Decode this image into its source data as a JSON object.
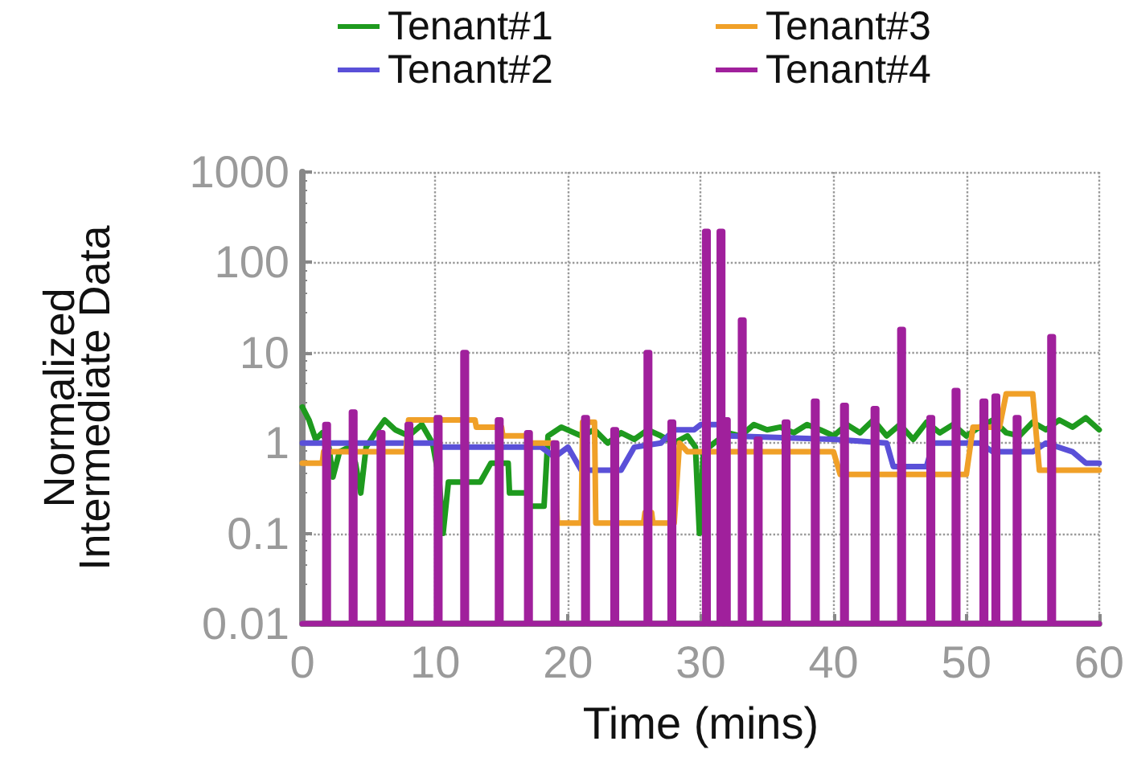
{
  "chart_data": {
    "type": "line",
    "xlabel": "Time (mins)",
    "ylabel": "Normalized\nIntermediate Data",
    "xlim": [
      0,
      60
    ],
    "xticks": [
      0,
      10,
      20,
      30,
      40,
      50,
      60
    ],
    "ylim": [
      0.01,
      1000
    ],
    "yticks": [
      0.01,
      0.1,
      1,
      10,
      100,
      1000
    ],
    "log": "y",
    "grid": true,
    "legend": "top",
    "marker": "none",
    "line_style": "solid",
    "series": [
      {
        "name": "Tenant#1",
        "color": "#1e9a1e",
        "x": [
          0,
          0.5,
          1,
          1.5,
          2,
          2.3,
          2.8,
          3.5,
          4,
          4.4,
          4.8,
          5.5,
          6.2,
          7,
          8,
          9,
          9.8,
          10.3,
          10.6,
          11,
          13.4,
          14.2,
          15.5,
          15.6,
          17,
          17.1,
          18.2,
          18.5,
          19.5,
          21,
          22,
          23,
          24,
          25,
          26,
          27,
          28,
          29,
          29.6,
          29.9,
          30.2,
          31,
          32,
          33,
          34,
          35,
          36,
          37,
          38,
          39,
          40,
          41,
          42,
          43,
          44,
          45,
          46,
          47,
          48,
          49,
          50,
          51,
          52,
          53,
          54,
          55,
          56,
          57,
          58,
          59,
          60
        ],
        "values": [
          2.5,
          1.8,
          1.1,
          1.3,
          0.9,
          0.42,
          0.8,
          0.9,
          0.6,
          0.28,
          0.9,
          1.3,
          1.8,
          1.4,
          1.2,
          1.6,
          1.0,
          0.4,
          0.1,
          0.37,
          0.37,
          0.6,
          0.6,
          0.28,
          0.28,
          0.2,
          0.2,
          1.2,
          1.5,
          1.2,
          1.4,
          1.0,
          1.3,
          1.1,
          1.4,
          1.2,
          1.0,
          1.2,
          0.9,
          0.1,
          0.8,
          1.0,
          1.3,
          1.2,
          1.6,
          1.4,
          1.5,
          1.3,
          1.6,
          1.4,
          1.2,
          1.6,
          1.3,
          1.8,
          1.2,
          1.6,
          1.1,
          1.7,
          1.3,
          1.6,
          1.2,
          1.5,
          1.8,
          1.3,
          1.2,
          1.7,
          1.4,
          1.8,
          1.5,
          1.9,
          1.4
        ]
      },
      {
        "name": "Tenant#2",
        "color": "#5a50d8",
        "x": [
          0,
          10,
          10.5,
          18,
          19,
          20,
          21,
          24,
          25,
          27,
          28,
          29.5,
          30,
          31.5,
          32,
          40,
          44,
          44.5,
          47,
          47.5,
          51,
          52,
          55,
          56,
          58,
          59,
          60
        ],
        "values": [
          1.0,
          1.0,
          0.9,
          0.9,
          0.7,
          0.9,
          0.5,
          0.5,
          0.9,
          1.0,
          1.4,
          1.4,
          1.6,
          1.6,
          1.2,
          1.1,
          1.0,
          0.55,
          0.55,
          1.0,
          1.0,
          0.8,
          0.8,
          1.0,
          0.8,
          0.6,
          0.6
        ]
      },
      {
        "name": "Tenant#3",
        "color": "#f0a028",
        "x": [
          0,
          1.5,
          1.6,
          7.8,
          8,
          13,
          13.1,
          15,
          15.1,
          17,
          17.1,
          19,
          19.2,
          21,
          21.1,
          22,
          22.1,
          25.7,
          25.8,
          26.3,
          26.4,
          28,
          28.4,
          29,
          38,
          40,
          40.5,
          50,
          50.5,
          52.5,
          53,
          55,
          55.5,
          60
        ],
        "values": [
          0.6,
          0.6,
          0.8,
          0.8,
          1.8,
          1.8,
          1.5,
          1.5,
          1.2,
          1.2,
          1.0,
          1.0,
          0.13,
          0.13,
          1.7,
          1.7,
          0.13,
          0.13,
          0.17,
          0.17,
          0.13,
          0.13,
          1.0,
          0.8,
          0.8,
          0.8,
          0.45,
          0.45,
          1.5,
          1.5,
          3.5,
          3.5,
          0.5,
          0.5
        ]
      },
      {
        "name": "Tenant#4",
        "color": "#a0209c",
        "x": [
          0,
          1.7,
          1.7,
          1.95,
          1.95,
          3.7,
          3.7,
          3.95,
          3.95,
          5.8,
          5.8,
          6.05,
          6.05,
          7.9,
          7.9,
          8.15,
          8.15,
          10.1,
          10.1,
          10.35,
          10.35,
          12.1,
          12.1,
          12.35,
          12.35,
          14.7,
          14.7,
          14.95,
          14.95,
          16.9,
          16.9,
          17.15,
          17.15,
          18.9,
          18.9,
          19.15,
          19.15,
          21.2,
          21.2,
          21.45,
          21.45,
          23.4,
          23.4,
          23.65,
          23.65,
          25.9,
          25.9,
          26.15,
          26.15,
          27.7,
          27.7,
          27.95,
          27.95,
          30.3,
          30.3,
          30.55,
          30.55,
          31.4,
          31.4,
          31.65,
          31.65,
          31.8,
          31.8,
          32.05,
          32.05,
          33,
          33,
          33.25,
          33.25,
          34.2,
          34.2,
          34.45,
          34.45,
          36.3,
          36.3,
          36.55,
          36.55,
          38.5,
          38.5,
          38.75,
          38.75,
          40.7,
          40.7,
          40.95,
          40.95,
          43,
          43,
          43.25,
          43.25,
          45,
          45,
          45.25,
          45.25,
          47.2,
          47.2,
          47.45,
          47.45,
          49.1,
          49.1,
          49.35,
          49.35,
          51.2,
          51.2,
          51.45,
          51.45,
          52.1,
          52.1,
          52.35,
          52.35,
          53.7,
          53.7,
          53.95,
          53.95,
          56.3,
          56.3,
          56.55,
          56.55,
          60
        ],
        "values": [
          0.01,
          0.01,
          1.6,
          1.6,
          0.01,
          0.01,
          2.2,
          2.2,
          0.01,
          0.01,
          1.3,
          1.3,
          0.01,
          0.01,
          1.6,
          1.6,
          0.01,
          0.01,
          1.9,
          1.9,
          0.01,
          0.01,
          10,
          10,
          0.01,
          0.01,
          1.8,
          1.8,
          0.01,
          0.01,
          1.3,
          1.3,
          0.01,
          0.01,
          1.0,
          1.0,
          0.01,
          0.01,
          1.9,
          1.9,
          0.01,
          0.01,
          1.4,
          1.4,
          0.01,
          0.01,
          10,
          10,
          0.01,
          0.01,
          1.7,
          1.7,
          0.01,
          0.01,
          220,
          220,
          0.01,
          0.01,
          220,
          220,
          0.01,
          0.01,
          1.8,
          1.8,
          0.01,
          0.01,
          23,
          23,
          0.01,
          0.01,
          1.1,
          1.1,
          0.01,
          0.01,
          1.7,
          1.7,
          0.01,
          0.01,
          2.9,
          2.9,
          0.01,
          0.01,
          2.6,
          2.6,
          0.01,
          0.01,
          2.4,
          2.4,
          0.01,
          0.01,
          18,
          18,
          0.01,
          0.01,
          1.9,
          1.9,
          0.01,
          0.01,
          3.8,
          3.8,
          0.01,
          0.01,
          2.9,
          2.9,
          0.01,
          0.01,
          3.3,
          3.3,
          0.01,
          0.01,
          1.9,
          1.9,
          0.01,
          0.01,
          15,
          15,
          0.01,
          0.01
        ]
      }
    ]
  }
}
